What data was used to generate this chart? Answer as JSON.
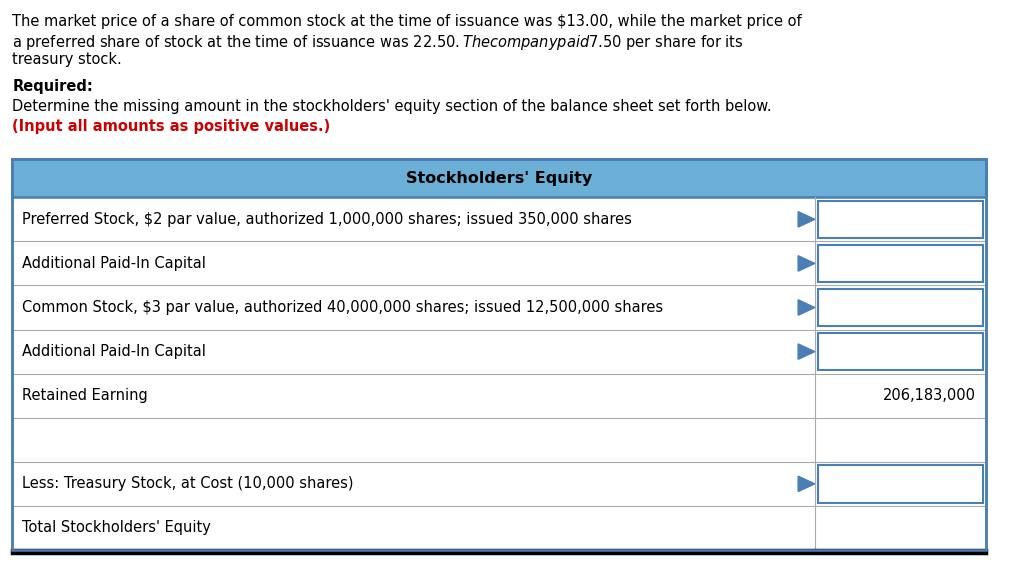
{
  "background_color": "#ffffff",
  "intro_text_line1": "The market price of a share of common stock at the time of issuance was $13.00, while the market price of",
  "intro_text_line2": "a preferred share of stock at the time of issuance was $22.50. The company paid $7.50 per share for its",
  "intro_text_line3": "treasury stock.",
  "required_label": "Required:",
  "required_body": "Determine the missing amount in the stockholders' equity section of the balance sheet set forth below.",
  "required_note": "(Input all amounts as positive values.)",
  "table_header": "Stockholders' Equity",
  "header_bg": "#6baed6",
  "header_text_color": "#000000",
  "table_border_color": "#4a7fb5",
  "row_border_color": "#aaaaaa",
  "input_box_color": "#4a7fb5",
  "rows": [
    {
      "label": "Preferred Stock, $2 par value, authorized 1,000,000 shares; issued 350,000 shares",
      "value": "",
      "has_input": true,
      "bold_bottom": false
    },
    {
      "label": "Additional Paid-In Capital",
      "value": "",
      "has_input": true,
      "bold_bottom": false
    },
    {
      "label": "Common Stock, $3 par value, authorized 40,000,000 shares; issued 12,500,000 shares",
      "value": "",
      "has_input": true,
      "bold_bottom": false
    },
    {
      "label": "Additional Paid-In Capital",
      "value": "",
      "has_input": true,
      "bold_bottom": false
    },
    {
      "label": "Retained Earning",
      "value": "206,183,000",
      "has_input": false,
      "bold_bottom": false
    },
    {
      "label": "",
      "value": "",
      "has_input": false,
      "bold_bottom": false
    },
    {
      "label": "Less: Treasury Stock, at Cost (10,000 shares)",
      "value": "",
      "has_input": true,
      "bold_bottom": false
    },
    {
      "label": "Total Stockholders' Equity",
      "value": "",
      "has_input": false,
      "bold_bottom": true
    }
  ],
  "note_color": "#cc0000",
  "font_size_intro": 10.5,
  "font_size_table": 10.5,
  "font_size_header": 11.5
}
